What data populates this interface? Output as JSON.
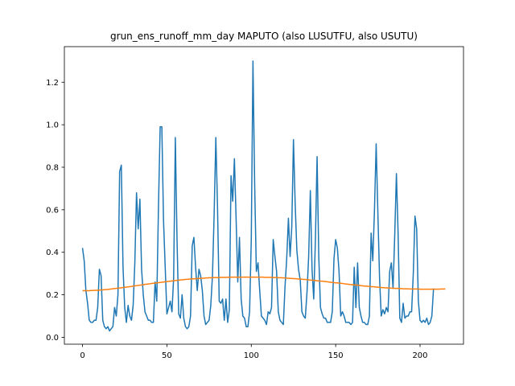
{
  "chart_data": {
    "type": "line",
    "title": "grun_ens_runoff_mm_day MAPUTO (also LUSUTFU, also USUTU)",
    "xlabel": "",
    "ylabel": "",
    "xlim": [
      -10.75,
      225.75
    ],
    "ylim": [
      -0.0325,
      1.3675
    ],
    "xticks": [
      0,
      50,
      100,
      150,
      200
    ],
    "yticks": [
      0.0,
      0.2,
      0.4,
      0.6,
      0.8,
      1.0,
      1.2
    ],
    "ytick_labels": [
      "0.0",
      "0.2",
      "0.4",
      "0.6",
      "0.8",
      "1.0",
      "1.2"
    ],
    "grid": false,
    "colors": {
      "series1": "#1f77b4",
      "series2": "#ff7f0e"
    },
    "series": [
      {
        "name": "",
        "x_start": 0,
        "values": [
          0.42,
          0.36,
          0.22,
          0.16,
          0.08,
          0.07,
          0.07,
          0.08,
          0.08,
          0.14,
          0.32,
          0.29,
          0.08,
          0.05,
          0.04,
          0.05,
          0.03,
          0.04,
          0.05,
          0.14,
          0.1,
          0.2,
          0.78,
          0.81,
          0.33,
          0.14,
          0.07,
          0.15,
          0.1,
          0.08,
          0.15,
          0.35,
          0.68,
          0.51,
          0.65,
          0.32,
          0.2,
          0.12,
          0.1,
          0.08,
          0.08,
          0.07,
          0.07,
          0.26,
          0.17,
          0.61,
          0.99,
          0.99,
          0.55,
          0.33,
          0.11,
          0.14,
          0.17,
          0.12,
          0.28,
          0.94,
          0.46,
          0.11,
          0.09,
          0.2,
          0.09,
          0.05,
          0.04,
          0.05,
          0.1,
          0.43,
          0.47,
          0.33,
          0.22,
          0.32,
          0.29,
          0.22,
          0.1,
          0.06,
          0.07,
          0.08,
          0.15,
          0.29,
          0.58,
          0.94,
          0.61,
          0.17,
          0.16,
          0.18,
          0.08,
          0.18,
          0.07,
          0.13,
          0.76,
          0.64,
          0.84,
          0.56,
          0.26,
          0.47,
          0.18,
          0.1,
          0.09,
          0.05,
          0.05,
          0.12,
          0.46,
          1.3,
          0.72,
          0.31,
          0.35,
          0.22,
          0.1,
          0.09,
          0.08,
          0.06,
          0.12,
          0.11,
          0.14,
          0.46,
          0.38,
          0.31,
          0.12,
          0.08,
          0.07,
          0.06,
          0.24,
          0.37,
          0.56,
          0.38,
          0.52,
          0.93,
          0.63,
          0.41,
          0.32,
          0.27,
          0.12,
          0.1,
          0.09,
          0.21,
          0.38,
          0.69,
          0.32,
          0.18,
          0.46,
          0.85,
          0.38,
          0.14,
          0.11,
          0.09,
          0.09,
          0.07,
          0.07,
          0.07,
          0.12,
          0.37,
          0.46,
          0.42,
          0.31,
          0.1,
          0.12,
          0.1,
          0.07,
          0.07,
          0.07,
          0.06,
          0.07,
          0.33,
          0.14,
          0.35,
          0.14,
          0.1,
          0.07,
          0.07,
          0.06,
          0.06,
          0.1,
          0.49,
          0.36,
          0.6,
          0.91,
          0.59,
          0.28,
          0.1,
          0.13,
          0.11,
          0.14,
          0.12,
          0.31,
          0.35,
          0.23,
          0.48,
          0.77,
          0.49,
          0.09,
          0.07,
          0.16,
          0.09,
          0.1,
          0.1,
          0.12,
          0.12,
          0.3,
          0.57,
          0.51,
          0.17,
          0.08,
          0.07,
          0.08,
          0.07,
          0.09,
          0.06,
          0.07,
          0.1,
          0.23
        ]
      },
      {
        "name": "",
        "x_start": 0,
        "values": [
          0.219,
          0.219,
          0.219,
          0.219,
          0.219,
          0.22,
          0.22,
          0.221,
          0.221,
          0.221,
          0.222,
          0.223,
          0.223,
          0.224,
          0.225,
          0.225,
          0.226,
          0.227,
          0.228,
          0.229,
          0.23,
          0.231,
          0.232,
          0.233,
          0.234,
          0.235,
          0.236,
          0.237,
          0.238,
          0.239,
          0.241,
          0.242,
          0.243,
          0.244,
          0.245,
          0.246,
          0.247,
          0.249,
          0.25,
          0.251,
          0.252,
          0.253,
          0.254,
          0.255,
          0.256,
          0.257,
          0.258,
          0.259,
          0.26,
          0.261,
          0.262,
          0.263,
          0.264,
          0.265,
          0.266,
          0.267,
          0.268,
          0.269,
          0.27,
          0.27,
          0.271,
          0.272,
          0.273,
          0.273,
          0.274,
          0.275,
          0.275,
          0.276,
          0.276,
          0.277,
          0.277,
          0.278,
          0.278,
          0.279,
          0.279,
          0.28,
          0.28,
          0.28,
          0.281,
          0.281,
          0.281,
          0.281,
          0.282,
          0.282,
          0.282,
          0.282,
          0.282,
          0.283,
          0.283,
          0.283,
          0.283,
          0.283,
          0.283,
          0.283,
          0.283,
          0.283,
          0.283,
          0.283,
          0.283,
          0.283,
          0.283,
          0.283,
          0.283,
          0.283,
          0.283,
          0.283,
          0.283,
          0.283,
          0.282,
          0.282,
          0.282,
          0.282,
          0.282,
          0.281,
          0.281,
          0.281,
          0.28,
          0.28,
          0.28,
          0.279,
          0.279,
          0.278,
          0.278,
          0.277,
          0.277,
          0.276,
          0.276,
          0.275,
          0.274,
          0.274,
          0.273,
          0.272,
          0.272,
          0.271,
          0.27,
          0.269,
          0.269,
          0.268,
          0.267,
          0.266,
          0.265,
          0.264,
          0.264,
          0.263,
          0.262,
          0.261,
          0.26,
          0.259,
          0.258,
          0.257,
          0.256,
          0.256,
          0.255,
          0.254,
          0.253,
          0.252,
          0.251,
          0.25,
          0.249,
          0.248,
          0.247,
          0.246,
          0.246,
          0.245,
          0.244,
          0.243,
          0.242,
          0.241,
          0.241,
          0.24,
          0.239,
          0.238,
          0.238,
          0.237,
          0.236,
          0.236,
          0.235,
          0.234,
          0.234,
          0.233,
          0.233,
          0.232,
          0.232,
          0.231,
          0.231,
          0.23,
          0.23,
          0.23,
          0.229,
          0.229,
          0.228,
          0.228,
          0.228,
          0.228,
          0.227,
          0.227,
          0.227,
          0.227,
          0.227,
          0.227,
          0.226,
          0.226,
          0.226,
          0.226,
          0.226,
          0.226,
          0.226,
          0.226,
          0.226,
          0.226,
          0.226,
          0.226,
          0.227,
          0.227,
          0.227,
          0.227
        ]
      }
    ]
  }
}
